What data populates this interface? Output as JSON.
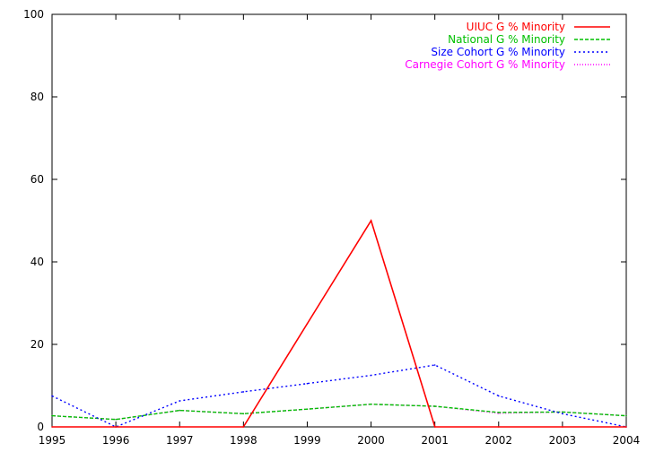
{
  "chart_data": {
    "type": "line",
    "title": "",
    "xlabel": "",
    "ylabel": "",
    "x": [
      1995,
      1996,
      1997,
      1998,
      1999,
      2000,
      2001,
      2002,
      2003,
      2004
    ],
    "xlim": [
      1995,
      2004
    ],
    "ylim": [
      0,
      100
    ],
    "x_ticks": [
      "1995",
      "1996",
      "1997",
      "1998",
      "1999",
      "2000",
      "2001",
      "2002",
      "2003",
      "2004"
    ],
    "y_ticks": [
      "0",
      "20",
      "40",
      "60",
      "80",
      "100"
    ],
    "grid": false,
    "legend_position": "top-right",
    "series": [
      {
        "name": "UIUC G % Minority",
        "color": "#ff0000",
        "dash": "solid",
        "values": [
          0,
          0,
          0,
          0,
          25,
          50,
          0,
          0,
          0,
          0
        ]
      },
      {
        "name": "National G % Minority",
        "color": "#00c000",
        "dash": "dashed",
        "values": [
          2.7,
          1.8,
          4.0,
          3.2,
          4.3,
          5.5,
          5.0,
          3.5,
          3.6,
          2.7
        ]
      },
      {
        "name": "Size Cohort G % Minority",
        "color": "#0000ff",
        "dash": "dotted",
        "values": [
          7.5,
          0,
          6.3,
          8.5,
          10.5,
          12.5,
          15.0,
          7.5,
          3.2,
          0
        ]
      },
      {
        "name": "Carnegie Cohort G % Minority",
        "color": "#ff00ff",
        "dash": "fine-dotted",
        "values": [
          2.7,
          1.8,
          4.0,
          3.2,
          4.3,
          5.5,
          5.0,
          3.3,
          3.6,
          2.7
        ]
      }
    ]
  }
}
